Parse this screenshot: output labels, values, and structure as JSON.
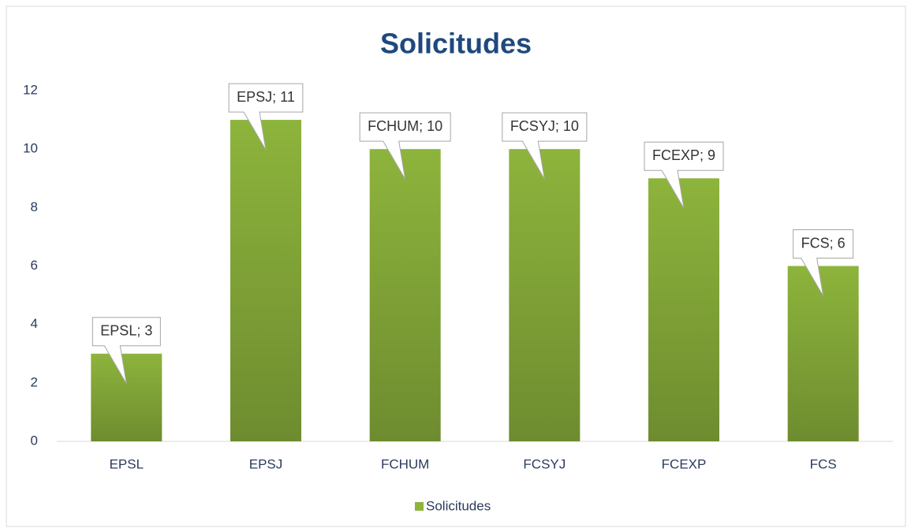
{
  "chart_data": {
    "type": "bar",
    "title": "Solicitudes",
    "categories": [
      "EPSL",
      "EPSJ",
      "FCHUM",
      "FCSYJ",
      "FCEXP",
      "FCS"
    ],
    "series": [
      {
        "name": "Solicitudes",
        "color": "#8db43c",
        "values": [
          3,
          11,
          10,
          10,
          9,
          6
        ],
        "value_labels": [
          "EPSL; 3",
          "EPSJ; 11",
          "FCHUM; 10",
          "FCSYJ; 10",
          "FCEXP; 9",
          "FCS; 6"
        ]
      }
    ],
    "ylim": [
      0,
      12
    ],
    "yticks": [
      0,
      2,
      4,
      6,
      8,
      10,
      12
    ],
    "grid": false,
    "legend": "bottom"
  }
}
